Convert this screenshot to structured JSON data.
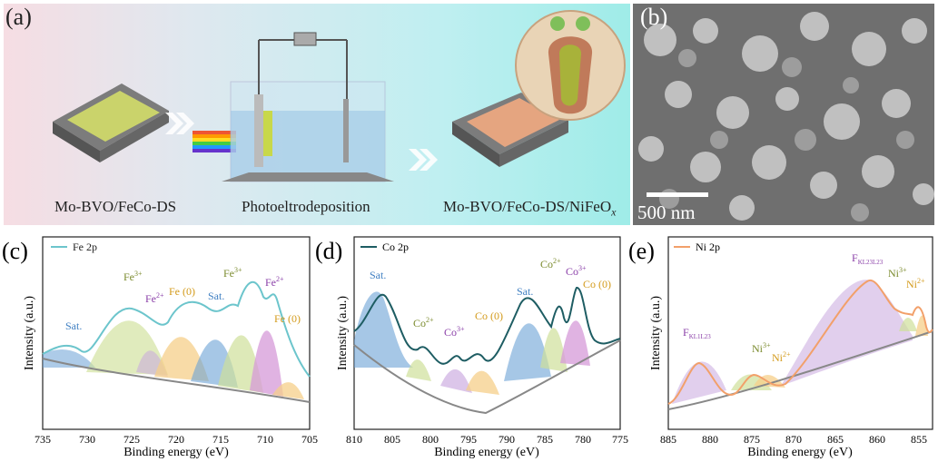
{
  "panel_a": {
    "label": "(a)",
    "caption_left": "Mo-BVO/FeCo-DS",
    "caption_mid": "Photoeltrodeposition",
    "caption_right_main": "Mo-BVO/FeCo-DS/NiFeO",
    "caption_right_sub": "x"
  },
  "panel_b": {
    "label": "(b)",
    "scale_text": "500 nm"
  },
  "panel_c": {
    "label": "(c)",
    "legend": "Fe 2p",
    "xlabel": "Binding energy (eV)",
    "ylabel": "Intensity (a.u.)",
    "ticks": [
      "735",
      "730",
      "725",
      "720",
      "715",
      "710",
      "705"
    ],
    "annotations": {
      "sat1": "Sat.",
      "fe3a": "Fe",
      "fe3a_sup": "3+",
      "fe2a": "Fe",
      "fe2a_sup": "2+",
      "fe0a": "Fe (0)",
      "sat2": "Sat.",
      "fe3b": "Fe",
      "fe3b_sup": "3+",
      "fe2b": "Fe",
      "fe2b_sup": "2+",
      "fe0b": "Fe (0)"
    }
  },
  "panel_d": {
    "label": "(d)",
    "legend": "Co 2p",
    "xlabel": "Binding energy (eV)",
    "ylabel": "Intensity (a.u.)",
    "ticks": [
      "810",
      "805",
      "800",
      "795",
      "790",
      "785",
      "780",
      "775"
    ],
    "annotations": {
      "sat1": "Sat.",
      "co2a": "Co",
      "co2a_sup": "2+",
      "co3a": "Co",
      "co3a_sup": "3+",
      "co0a": "Co (0)",
      "sat2": "Sat.",
      "co2b": "Co",
      "co2b_sup": "2+",
      "co3b": "Co",
      "co3b_sup": "3+",
      "co0b": "Co (0)"
    }
  },
  "panel_e": {
    "label": "(e)",
    "legend": "Ni 2p",
    "xlabel": "Binding energy (eV)",
    "ylabel": "Intensity (a.u.)",
    "ticks": [
      "885",
      "880",
      "875",
      "870",
      "865",
      "860",
      "855"
    ],
    "annotations": {
      "fkl1": "F",
      "fkl1_sub": "KL1L23",
      "ni3a": "Ni",
      "ni3a_sup": "3+",
      "ni2a": "Ni",
      "ni2a_sup": "2+",
      "fkl2": "F",
      "fkl2_sub": "KL23L23",
      "ni3b": "Ni",
      "ni3b_sup": "3+",
      "ni2b": "Ni",
      "ni2b_sup": "2+"
    }
  },
  "colors": {
    "fe_env": "#6cc5cc",
    "co_env": "#1e5d63",
    "ni_env": "#f2a06a",
    "bg_line": "#888888"
  }
}
